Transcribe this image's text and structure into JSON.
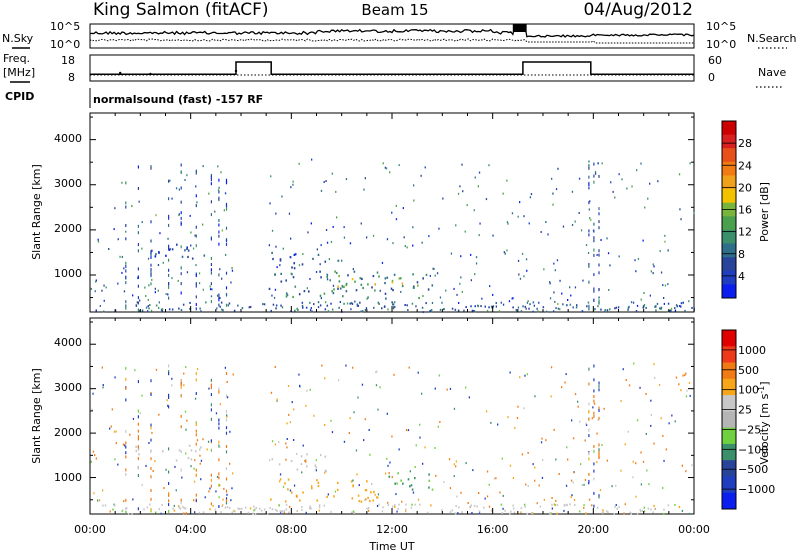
{
  "header": {
    "station": "King Salmon (fitACF)",
    "beam": "Beam 15",
    "date": "04/Aug/2012"
  },
  "noise_panel": {
    "left_label": "N.Sky",
    "right_label": "N.Search",
    "left_ticks": [
      "10^5",
      "10^0"
    ],
    "right_ticks": [
      "10^5",
      "10^0"
    ]
  },
  "freq_panel": {
    "left_label_line1": "Freq.",
    "left_label_line2": "[MHz]",
    "right_label": "Nave",
    "left_ticks": [
      18,
      8
    ],
    "right_ticks": [
      60,
      0
    ],
    "freq_segments": [
      {
        "t0": 0,
        "t1": 5.8,
        "mhz": 10.6
      },
      {
        "t0": 5.8,
        "t1": 7.2,
        "mhz": 15.3
      },
      {
        "t0": 7.2,
        "t1": 17.2,
        "mhz": 10.6
      },
      {
        "t0": 17.2,
        "t1": 19.9,
        "mhz": 15.3
      },
      {
        "t0": 19.9,
        "t1": 24,
        "mhz": 10.6
      }
    ]
  },
  "cpid": {
    "label": "CPID",
    "program": "normalsound (fast) -157 RF"
  },
  "axes": {
    "xlabel": "Time UT",
    "x_tick_labels": [
      "00:00",
      "04:00",
      "08:00",
      "12:00",
      "16:00",
      "20:00",
      "00:00"
    ],
    "ylabel": "Slant Range [km]",
    "y_tick_labels": [
      "1000",
      "2000",
      "3000",
      "4000"
    ]
  },
  "colors": {
    "power_scale": [
      "#0a1ef0",
      "#1f3dbf",
      "#28449a",
      "#2e6e8a",
      "#3b8f6a",
      "#4aa04c",
      "#79b53c",
      "#f2c100",
      "#f0a11c",
      "#f07a14",
      "#e8501a",
      "#d82020",
      "#cc0000"
    ],
    "velocity_scale": [
      "#e00000",
      "#ee3a1a",
      "#f07a14",
      "#f7a61a",
      "#c8c8c8",
      "#b5b5b5",
      "#6fd040",
      "#3b8f6a",
      "#28449a",
      "#1f3dbf",
      "#0a1ef0"
    ]
  },
  "chart_data": [
    {
      "type": "heatmap",
      "title": "",
      "xlabel": "Time UT",
      "ylabel": "Slant Range [km]",
      "x_range_hours": [
        0,
        24
      ],
      "y_range_km": [
        180,
        4590
      ],
      "colorbar": {
        "label": "Power [dB]",
        "ticks": [
          4,
          8,
          12,
          16,
          20,
          24,
          28
        ],
        "range": [
          0,
          30
        ]
      },
      "features": [
        {
          "t0": 1.8,
          "t1": 4.6,
          "r0": 1380,
          "r1": 1750,
          "value": 4
        },
        {
          "t0": 7.1,
          "t1": 9.4,
          "r0": 1150,
          "r1": 1550,
          "value": 4
        },
        {
          "t0": 7.1,
          "t1": 13.6,
          "r0": 480,
          "r1": 1100,
          "value": 8
        },
        {
          "t0": 9.8,
          "t1": 13.2,
          "r0": 750,
          "r1": 1000,
          "value": 16
        }
      ]
    },
    {
      "type": "heatmap",
      "title": "",
      "xlabel": "Time UT",
      "ylabel": "Slant Range [km]",
      "x_range_hours": [
        0,
        24
      ],
      "y_range_km": [
        180,
        4590
      ],
      "colorbar": {
        "label": "Velocity [m s^-1]",
        "ticks": [
          1000,
          500,
          100,
          25,
          -25,
          -100,
          -500,
          -1000
        ]
      },
      "features": [
        {
          "t0": 1.8,
          "t1": 4.6,
          "r0": 1400,
          "r1": 1750,
          "value": 0
        },
        {
          "t0": 7.1,
          "t1": 9.4,
          "r0": 1150,
          "r1": 1550,
          "value": 0
        },
        {
          "t0": 7.1,
          "t1": 11.4,
          "r0": 480,
          "r1": 1000,
          "value": -75
        },
        {
          "t0": 11.4,
          "t1": 13.6,
          "r0": 750,
          "r1": 1150,
          "value": 75
        }
      ]
    }
  ]
}
